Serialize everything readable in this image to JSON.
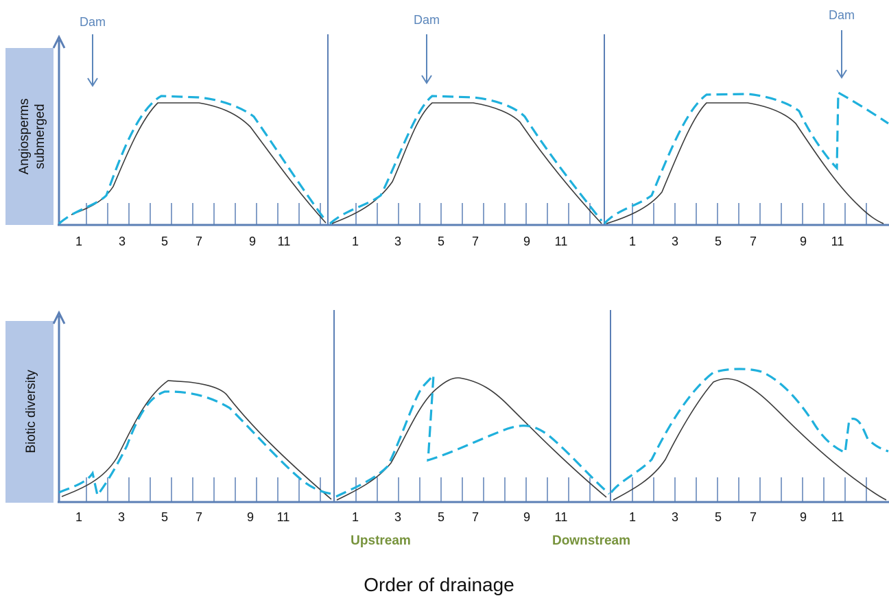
{
  "colors": {
    "axis": "#5b7fb5",
    "label_box": "#b4c7e7",
    "natural_curve": "#3a3a3a",
    "dam_curve": "#1fb0dc",
    "dam_text": "#5b86bb",
    "stream_text": "#77933c"
  },
  "icons": {
    "y_axis_arrow": "arrow-up-icon",
    "dam_marker": "arrow-down-icon"
  },
  "x_title": "Order of drainage",
  "tick_labels": [
    "1",
    "3",
    "5",
    "7",
    "9",
    "11"
  ],
  "stream_labels": {
    "upstream": "Upstream",
    "downstream": "Downstream"
  },
  "rows": [
    {
      "ylabel_line1": "Angiosperms",
      "ylabel_line2": "submerged"
    },
    {
      "ylabel_line1": "Biotic diversity",
      "ylabel_line2": ""
    }
  ],
  "dams": [
    {
      "label": "Dam",
      "panel": 1
    },
    {
      "label": "Dam",
      "panel": 2
    },
    {
      "label": "Dam",
      "panel": 3
    }
  ]
}
